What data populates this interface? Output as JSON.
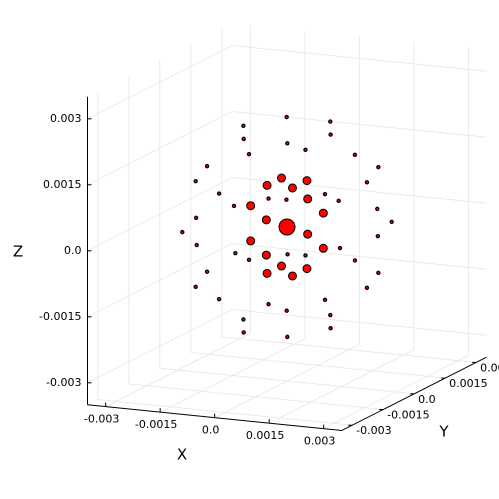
{
  "chart_data": {
    "type": "scatter3d",
    "xlabel": "X",
    "ylabel": "Y",
    "zlabel": "Z",
    "xlim": [
      -0.0035,
      0.0035
    ],
    "ylim": [
      -0.0035,
      0.0035
    ],
    "zlim": [
      -0.0035,
      0.0035
    ],
    "xticks": [
      -0.003,
      -0.0015,
      {
        "value": 0,
        "label": "0.0"
      },
      0.0015,
      0.003
    ],
    "yticks": [
      -0.003,
      -0.0015,
      {
        "value": 0,
        "label": "0.0"
      },
      0.0015,
      0.003
    ],
    "zticks": [
      -0.003,
      -0.0015,
      {
        "value": 0,
        "label": "0.0"
      },
      0.0015,
      0.003
    ],
    "grid": true,
    "series": [
      {
        "color": "#ff0000",
        "marker_size": 8,
        "x": [
          0
        ],
        "y": [
          0
        ],
        "z": [
          0
        ]
      },
      {
        "color": "#ff0000",
        "marker_size": 4,
        "x": [
          0.00035,
          -0.00035,
          -0.00035,
          0.00035,
          0.001,
          0,
          -0.001,
          0,
          0.001,
          0,
          -0.001,
          0,
          0.00035,
          -0.00035,
          -0.00035,
          0.00035
        ],
        "y": [
          0.00035,
          0.00035,
          -0.00035,
          -0.00035,
          0,
          0.001,
          0,
          -0.001,
          0,
          0.001,
          0,
          -0.001,
          0.00035,
          0.00035,
          -0.00035,
          -0.00035
        ],
        "z": [
          0.001,
          0.001,
          0.001,
          0.001,
          0.0004,
          0.0004,
          0.0004,
          0.0004,
          -0.0004,
          -0.0004,
          -0.0004,
          -0.0004,
          -0.001,
          -0.001,
          -0.001,
          -0.001
        ]
      },
      {
        "color": "#ff0000",
        "marker_size": 1.6,
        "x": [
          0.0012,
          0.0006,
          -0.0006,
          -0.0012,
          -0.0006,
          0.0006,
          0.0022,
          0.00178,
          0.00068,
          -0.00068,
          -0.00178,
          -0.0022,
          -0.00178,
          -0.00068,
          0.00068,
          0.00178,
          0.0025,
          0.00217,
          0.00125,
          0,
          -0.00125,
          -0.00217,
          -0.0025,
          -0.00217,
          -0.00125,
          0,
          0.00125,
          0.00217,
          0.0022,
          0.00178,
          0.00068,
          -0.00068,
          -0.00178,
          -0.0022,
          -0.00178,
          -0.00068,
          0.00068,
          0.00178,
          0.0012,
          0.0006,
          -0.0006,
          -0.0012,
          -0.0006,
          0.0006
        ],
        "y": [
          0,
          0.00104,
          0.00104,
          0,
          -0.00104,
          -0.00104,
          0,
          0.00129,
          0.00209,
          0.00209,
          0.00129,
          0,
          -0.00129,
          -0.00209,
          -0.00209,
          -0.00129,
          0,
          0.00125,
          0.00217,
          0.0025,
          0.00217,
          0.00125,
          0,
          -0.00125,
          -0.00217,
          -0.0025,
          -0.00217,
          -0.00125,
          0,
          0.00129,
          0.00209,
          0.00209,
          0.00129,
          0,
          -0.00129,
          -0.00209,
          -0.00209,
          -0.00129,
          0,
          0.00104,
          0.00104,
          0,
          -0.00104,
          -0.00104
        ],
        "z": [
          0.0022,
          0.0022,
          0.0022,
          0.0022,
          0.0022,
          0.0022,
          0.0012,
          0.0012,
          0.0012,
          0.0012,
          0.0012,
          0.0012,
          0.0012,
          0.0012,
          0.0012,
          0.0012,
          0,
          0,
          0,
          0,
          0,
          0,
          0,
          0,
          0,
          0,
          0,
          0,
          -0.0012,
          -0.0012,
          -0.0012,
          -0.0012,
          -0.0012,
          -0.0012,
          -0.0012,
          -0.0012,
          -0.0012,
          -0.0012,
          -0.0022,
          -0.0022,
          -0.0022,
          -0.0022,
          -0.0022,
          -0.0022
        ]
      }
    ]
  }
}
